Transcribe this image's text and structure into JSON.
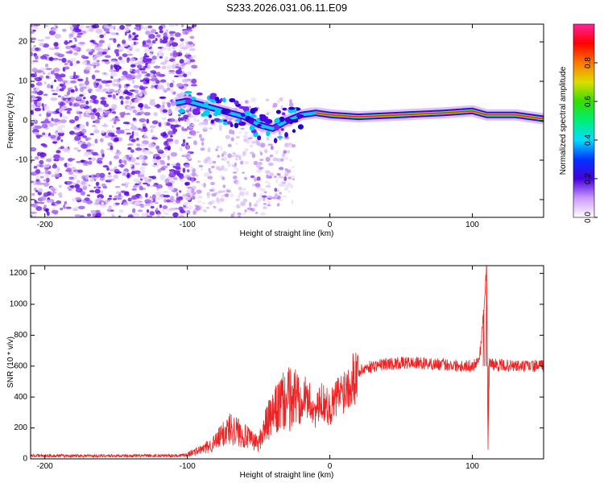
{
  "chart_data": [
    {
      "type": "heatmap",
      "title": "S233.2026.031.06.11.E09",
      "xlabel": "Height of straight line (km)",
      "ylabel": "Frequency (Hz)",
      "xlim": [
        -210,
        150
      ],
      "ylim": [
        -24.5,
        24.5
      ],
      "x_ticks": [
        -200,
        -100,
        0,
        100
      ],
      "y_ticks": [
        -20,
        -10,
        0,
        10,
        20
      ],
      "colorbar": {
        "label": "Normalized spectral amplitude",
        "range": [
          0.0,
          1.0
        ],
        "ticks": [
          0.0,
          0.2,
          0.4,
          0.6,
          0.8
        ]
      },
      "ridge": [
        [
          -108,
          4.5
        ],
        [
          -100,
          5.0
        ],
        [
          -90,
          4.0
        ],
        [
          -80,
          3.0
        ],
        [
          -70,
          2.0
        ],
        [
          -60,
          1.0
        ],
        [
          -50,
          -1.0
        ],
        [
          -40,
          -2.0
        ],
        [
          -30,
          0.0
        ],
        [
          -20,
          1.5
        ],
        [
          -10,
          2.0
        ],
        [
          0,
          1.5
        ],
        [
          20,
          1.0
        ],
        [
          50,
          1.5
        ],
        [
          80,
          2.0
        ],
        [
          100,
          2.5
        ],
        [
          110,
          1.5
        ],
        [
          130,
          1.5
        ],
        [
          150,
          0.5
        ]
      ]
    },
    {
      "type": "line",
      "title": "",
      "xlabel": "Height of straight line (km)",
      "ylabel": "SNR (10 * v/v)",
      "xlim": [
        -210,
        150
      ],
      "ylim": [
        0,
        1250
      ],
      "x_ticks": [
        -200,
        -100,
        0,
        100
      ],
      "y_ticks": [
        0,
        200,
        400,
        600,
        800,
        1000,
        1200
      ],
      "color": "#ee2222",
      "series": [
        {
          "name": "SNR",
          "x": [
            -210,
            -180,
            -150,
            -120,
            -105,
            -100,
            -95,
            -90,
            -85,
            -80,
            -75,
            -70,
            -65,
            -60,
            -55,
            -50,
            -45,
            -40,
            -35,
            -30,
            -25,
            -20,
            -15,
            -10,
            -5,
            0,
            5,
            10,
            15,
            20,
            25,
            30,
            40,
            50,
            60,
            70,
            80,
            90,
            100,
            105,
            108,
            110,
            111,
            112,
            113,
            115,
            120,
            130,
            140,
            150
          ],
          "values": [
            20,
            20,
            20,
            20,
            22,
            30,
            45,
            60,
            80,
            110,
            160,
            200,
            180,
            150,
            120,
            100,
            220,
            280,
            350,
            380,
            400,
            420,
            380,
            300,
            380,
            320,
            400,
            450,
            520,
            560,
            590,
            600,
            615,
            620,
            620,
            615,
            610,
            605,
            600,
            650,
            950,
            1250,
            60,
            640,
            620,
            610,
            605,
            600,
            600,
            600
          ]
        }
      ]
    }
  ]
}
